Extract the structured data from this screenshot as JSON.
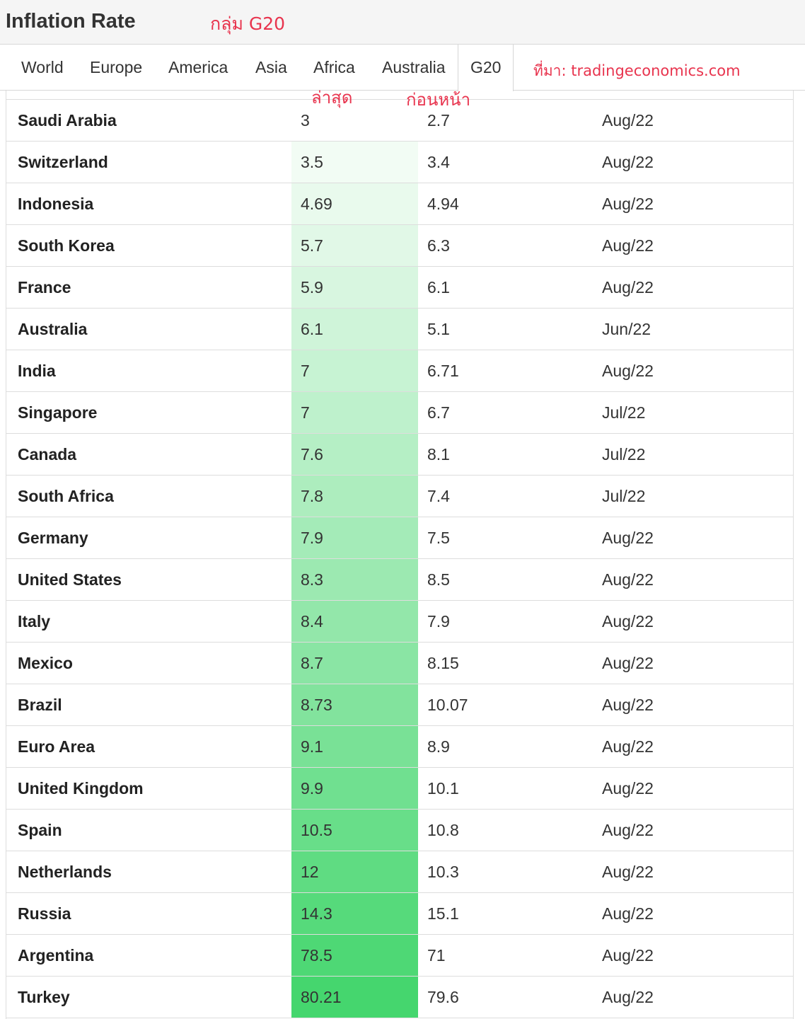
{
  "header": {
    "title": "Inflation Rate",
    "group_note": "กลุ่ม G20"
  },
  "tabs": [
    {
      "label": "World",
      "active": false
    },
    {
      "label": "Europe",
      "active": false
    },
    {
      "label": "America",
      "active": false
    },
    {
      "label": "Asia",
      "active": false
    },
    {
      "label": "Africa",
      "active": false
    },
    {
      "label": "Australia",
      "active": false
    },
    {
      "label": "G20",
      "active": true
    }
  ],
  "annotations": {
    "source": "ที่มา: tradingeconomics.com",
    "latest_column": "ล่าสุด",
    "previous_column": "ก่อนหน้า",
    "color": "#e8344e"
  },
  "heat_colors": {
    "low": "#f2fcf4",
    "high": "#45d66e"
  },
  "rows": [
    {
      "country": "Saudi Arabia",
      "latest": "3",
      "previous": "2.7",
      "reference": "Aug/22"
    },
    {
      "country": "Switzerland",
      "latest": "3.5",
      "previous": "3.4",
      "reference": "Aug/22"
    },
    {
      "country": "Indonesia",
      "latest": "4.69",
      "previous": "4.94",
      "reference": "Aug/22"
    },
    {
      "country": "South Korea",
      "latest": "5.7",
      "previous": "6.3",
      "reference": "Aug/22"
    },
    {
      "country": "France",
      "latest": "5.9",
      "previous": "6.1",
      "reference": "Aug/22"
    },
    {
      "country": "Australia",
      "latest": "6.1",
      "previous": "5.1",
      "reference": "Jun/22"
    },
    {
      "country": "India",
      "latest": "7",
      "previous": "6.71",
      "reference": "Aug/22"
    },
    {
      "country": "Singapore",
      "latest": "7",
      "previous": "6.7",
      "reference": "Jul/22"
    },
    {
      "country": "Canada",
      "latest": "7.6",
      "previous": "8.1",
      "reference": "Jul/22"
    },
    {
      "country": "South Africa",
      "latest": "7.8",
      "previous": "7.4",
      "reference": "Jul/22"
    },
    {
      "country": "Germany",
      "latest": "7.9",
      "previous": "7.5",
      "reference": "Aug/22"
    },
    {
      "country": "United States",
      "latest": "8.3",
      "previous": "8.5",
      "reference": "Aug/22"
    },
    {
      "country": "Italy",
      "latest": "8.4",
      "previous": "7.9",
      "reference": "Aug/22"
    },
    {
      "country": "Mexico",
      "latest": "8.7",
      "previous": "8.15",
      "reference": "Aug/22"
    },
    {
      "country": "Brazil",
      "latest": "8.73",
      "previous": "10.07",
      "reference": "Aug/22"
    },
    {
      "country": "Euro Area",
      "latest": "9.1",
      "previous": "8.9",
      "reference": "Aug/22"
    },
    {
      "country": "United Kingdom",
      "latest": "9.9",
      "previous": "10.1",
      "reference": "Aug/22"
    },
    {
      "country": "Spain",
      "latest": "10.5",
      "previous": "10.8",
      "reference": "Aug/22"
    },
    {
      "country": "Netherlands",
      "latest": "12",
      "previous": "10.3",
      "reference": "Aug/22"
    },
    {
      "country": "Russia",
      "latest": "14.3",
      "previous": "15.1",
      "reference": "Aug/22"
    },
    {
      "country": "Argentina",
      "latest": "78.5",
      "previous": "71",
      "reference": "Aug/22"
    },
    {
      "country": "Turkey",
      "latest": "80.21",
      "previous": "79.6",
      "reference": "Aug/22"
    }
  ]
}
